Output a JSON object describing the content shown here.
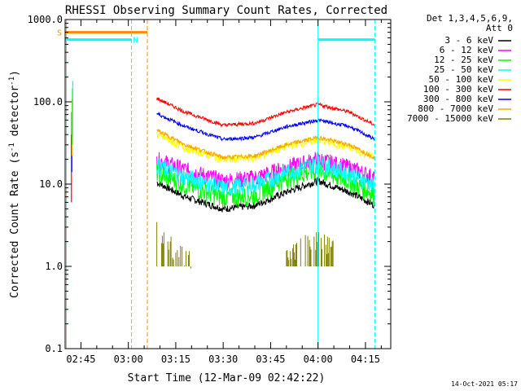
{
  "chart_data": {
    "type": "line",
    "title": "RHESSI Observing Summary Count Rates, Corrected",
    "xlabel": "Start Time (12-Mar-09 02:42:22)",
    "ylabel_main": "Corrected Count Rate (s",
    "ylabel_sup1": "-1",
    "ylabel_mid": " detector",
    "ylabel_sup2": "-1",
    "ylabel_end": ")",
    "yscale": "log",
    "ylim": [
      0.1,
      1000
    ],
    "xlim": [
      "02:40",
      "04:23"
    ],
    "grid": false,
    "legend_position": "top-right",
    "legend_header": [
      "Det 1,3,4,5,6,9,",
      "Att 0"
    ],
    "x_tick_labels": [
      "02:45",
      "03:00",
      "03:15",
      "03:30",
      "03:45",
      "04:00",
      "04:15"
    ],
    "x_ticks": [
      "02:45",
      "03:00",
      "03:15",
      "03:30",
      "03:45",
      "04:00",
      "04:15"
    ],
    "y_tick_labels": [
      "0.1",
      "1.0",
      "10.0",
      "100.0",
      "1000.0"
    ],
    "y_ticks": [
      0.1,
      1,
      10,
      100,
      1000
    ],
    "series": [
      {
        "name": "3 - 6 keV",
        "color": "#000000",
        "x": [
          "03:09",
          "03:18",
          "03:30",
          "03:40",
          "03:50",
          "04:00",
          "04:10",
          "04:18"
        ],
        "values": [
          10.5,
          7,
          5,
          5.5,
          8,
          11,
          8,
          5.5
        ]
      },
      {
        "name": "6 - 12 keV",
        "color": "#ff00ff",
        "x": [
          "03:09",
          "03:18",
          "03:30",
          "03:40",
          "03:50",
          "04:00",
          "04:10",
          "04:18"
        ],
        "values": [
          20,
          15,
          11,
          12,
          16,
          20,
          16,
          12
        ]
      },
      {
        "name": "12 - 25 keV",
        "color": "#00ff00",
        "x": [
          "03:09",
          "03:18",
          "03:30",
          "03:40",
          "03:50",
          "04:00",
          "04:10",
          "04:18"
        ],
        "values": [
          14,
          10,
          7,
          7.5,
          12,
          15,
          11,
          7.5
        ]
      },
      {
        "name": "25 - 50 keV",
        "color": "#00ffff",
        "x": [
          "03:09",
          "03:18",
          "03:30",
          "03:40",
          "03:50",
          "04:00",
          "04:10",
          "04:18"
        ],
        "values": [
          17,
          12.5,
          9,
          10,
          14,
          18,
          14,
          9.5
        ]
      },
      {
        "name": "50 - 100 keV",
        "color": "#ffff00",
        "x": [
          "03:09",
          "03:18",
          "03:30",
          "03:40",
          "03:50",
          "04:00",
          "04:10",
          "04:18"
        ],
        "values": [
          40,
          28,
          20,
          21,
          29,
          35,
          28,
          21
        ]
      },
      {
        "name": "100 - 300 keV",
        "color": "#ff0000",
        "x": [
          "03:09",
          "03:18",
          "03:30",
          "03:40",
          "03:50",
          "04:00",
          "04:10",
          "04:18"
        ],
        "values": [
          110,
          75,
          52,
          55,
          75,
          93,
          75,
          52
        ]
      },
      {
        "name": "300 - 800 keV",
        "color": "#0000ff",
        "x": [
          "03:09",
          "03:18",
          "03:30",
          "03:40",
          "03:50",
          "04:00",
          "04:10",
          "04:18"
        ],
        "values": [
          72,
          50,
          35,
          37,
          50,
          60,
          50,
          35
        ]
      },
      {
        "name": "800 - 7000 keV",
        "color": "#ffa500",
        "x": [
          "03:09",
          "03:18",
          "03:30",
          "03:40",
          "03:50",
          "04:00",
          "04:10",
          "04:18"
        ],
        "values": [
          45,
          30,
          21,
          22,
          30,
          37,
          30,
          21
        ]
      },
      {
        "name": "7000 - 15000 keV",
        "color": "#808000",
        "x": [
          "03:09",
          "03:12",
          "03:15",
          "03:20",
          "03:50",
          "03:55",
          "04:00",
          "04:05"
        ],
        "values": [
          2.5,
          1.8,
          1.2,
          1.0,
          1.0,
          1.6,
          1.7,
          1.4
        ]
      }
    ],
    "flag_bars": [
      {
        "label": "S",
        "color": "#ff8c00",
        "start": "02:40",
        "end": "03:06",
        "level": 700
      },
      {
        "label": "N",
        "color": "#00ffff",
        "start": "02:40",
        "end": "03:01",
        "level": 570
      },
      {
        "label": "",
        "color": "#00ffff",
        "start": "04:00",
        "end": "04:18",
        "level": 570
      }
    ],
    "vertical_markers": [
      {
        "color": "#00ffff",
        "style": "dashed",
        "x": "03:01"
      },
      {
        "color": "#ff8c00",
        "style": "dashed",
        "x": "03:06"
      },
      {
        "color": "#00ffff",
        "style": "solid",
        "x": "04:00"
      },
      {
        "color": "#00ffff",
        "style": "dashed",
        "x": "04:18"
      }
    ],
    "timestamp": "14-Oct-2021 05:17"
  }
}
